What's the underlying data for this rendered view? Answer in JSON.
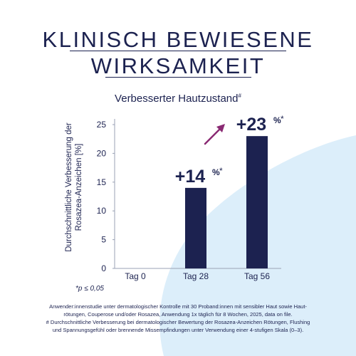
{
  "headline": {
    "line1": "KLINISCH BEWIESENE",
    "line2": "WIRKSAMKEIT"
  },
  "colors": {
    "navy": "#1c2250",
    "accent": "#8a2a73",
    "blob": "#dceefa",
    "axis": "#9aa2b4"
  },
  "footnote_p": "*p ≤ 0,05",
  "footer": {
    "line1": "Anwender:innenstudie unter dermatologischer Kontrolle mit 30 Proband:innen mit sensibler Haut sowie Haut-",
    "line2": "rötungen, Couperose und/oder Rosazea, Anwendung 1x täglich für 8 Wochen, 2025, data on file.",
    "line3": "# Durchschnittliche Verbesserung bei dermatologischer Bewertung der Rosazea-Anzeichen Rötungen, Flushing",
    "line4": "und Spannungsgefühl oder brennende Missempfindungen unter Verwendung einer 4-stufigen Skala (0–3)."
  },
  "chart_data": {
    "type": "bar",
    "title": "Verbesserter Hautzustand",
    "title_mark": "#",
    "ylabel_line1": "Durchschnittliche Verbesserung der",
    "ylabel_line2": "Rosazea-Anzeichen [%]",
    "categories": [
      "Tag 0",
      "Tag 28",
      "Tag 56"
    ],
    "values": [
      0,
      14,
      23
    ],
    "ylim": [
      0,
      25
    ],
    "yticks": [
      0,
      5,
      10,
      15,
      20,
      25
    ],
    "grid": false,
    "bar_labels": [
      {
        "value": "+14",
        "suffix": "%",
        "mark": "*",
        "category": "Tag 28"
      },
      {
        "value": "+23",
        "suffix": "%",
        "mark": "*",
        "category": "Tag 56"
      }
    ]
  }
}
